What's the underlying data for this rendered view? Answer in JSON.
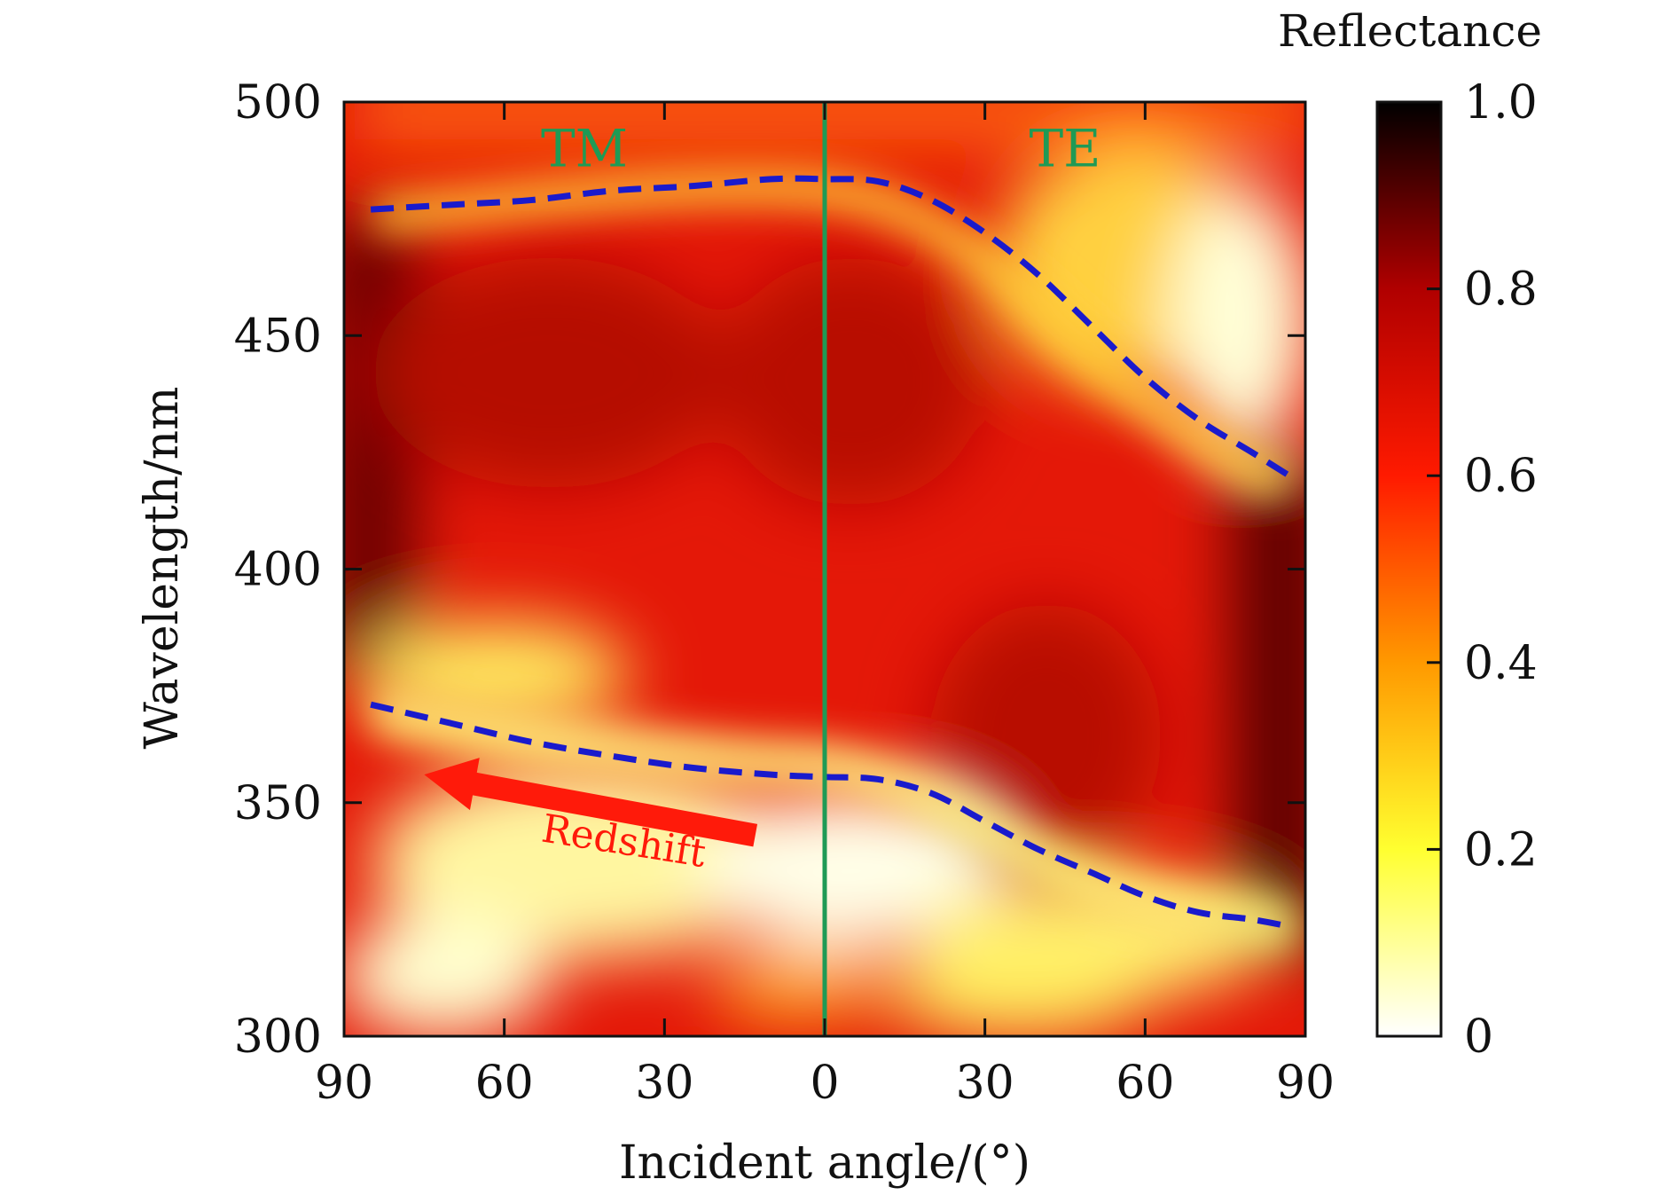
{
  "chart_data": {
    "type": "heatmap",
    "xlabel": "Incident angle/(°)",
    "ylabel": "Wavelength/nm",
    "colorbar_title": "Reflectance",
    "xlim": [
      -90,
      90
    ],
    "ylim": [
      300,
      500
    ],
    "x_ticks": [
      -90,
      -60,
      -30,
      0,
      30,
      60,
      90
    ],
    "x_tick_labels": [
      "90",
      "60",
      "30",
      "0",
      "30",
      "60",
      "90"
    ],
    "y_ticks": [
      300,
      350,
      400,
      450,
      500
    ],
    "y_tick_labels": [
      "300",
      "350",
      "400",
      "450",
      "500"
    ],
    "colorbar": {
      "range": [
        0,
        1
      ],
      "ticks": [
        0,
        0.2,
        0.4,
        0.6,
        0.8,
        1.0
      ],
      "tick_labels": [
        "0",
        "0.2",
        "0.4",
        "0.6",
        "0.8",
        "1.0"
      ],
      "colors": [
        "#ffffff",
        "#ffff30",
        "#ff9900",
        "#ff1a00",
        "#b00000",
        "#000000"
      ]
    },
    "regions": [
      {
        "label": "TM",
        "x_center": -45,
        "y": 490
      },
      {
        "label": "TE",
        "x_center": 45,
        "y": 490
      }
    ],
    "divider": {
      "x": 0,
      "color": "#1f9a55"
    },
    "series": [
      {
        "x": [
          -85,
          -70,
          -55,
          -40,
          -25,
          -10,
          0,
          10,
          20,
          30,
          40,
          50,
          60,
          70,
          80,
          87
        ],
        "y": [
          477,
          478,
          479,
          481,
          482,
          483.5,
          483.5,
          483,
          479,
          472,
          463,
          452,
          441,
          432,
          425,
          420
        ],
        "color": "#1a1acc",
        "style": "dashed"
      },
      {
        "x": [
          -85,
          -70,
          -55,
          -40,
          -25,
          -10,
          0,
          10,
          20,
          30,
          40,
          50,
          60,
          70,
          80,
          87
        ],
        "y": [
          371,
          367,
          363,
          360,
          357.5,
          356,
          355.5,
          355,
          352,
          346,
          340,
          335,
          330,
          326.5,
          325,
          323.5
        ],
        "color": "#1a1acc",
        "style": "dashed"
      }
    ],
    "annotations": [
      {
        "text": "Redshift",
        "color": "#ff1a0a",
        "arrow_from": [
          -13,
          343
        ],
        "arrow_to": [
          -75,
          356
        ],
        "text_at": [
          -38,
          339
        ]
      }
    ]
  }
}
